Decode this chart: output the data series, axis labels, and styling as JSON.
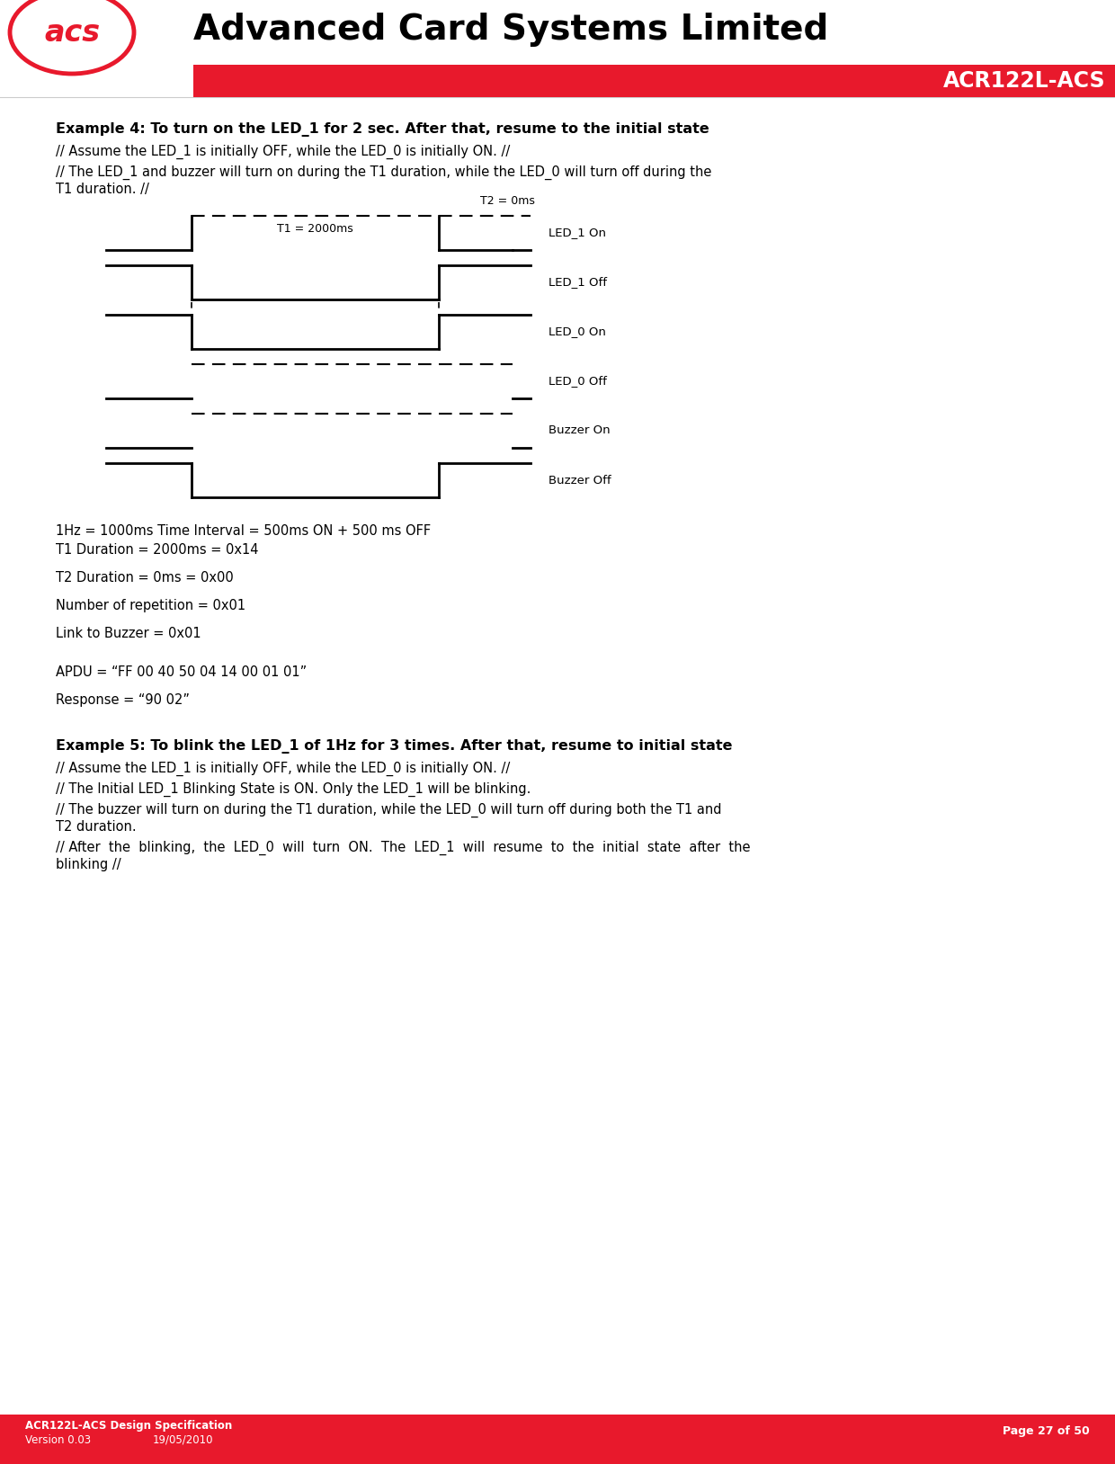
{
  "title": "Advanced Card Systems Limited",
  "subtitle": "ACR122L-ACS",
  "red_color": "#E8192C",
  "footer_left_line1": "ACR122L-ACS Design Specification",
  "footer_left_line2": "Version 0.03",
  "footer_left_line3": "19/05/2010",
  "footer_right": "Page 27 of 50",
  "example4_title": "Example 4: To turn on the LED_1 for 2 sec. After that, resume to the initial state",
  "example4_line1": "// Assume the LED_1 is initially OFF, while the LED_0 is initially ON. //",
  "example4_line2": "// The LED_1 and buzzer will turn on during the T1 duration, while the LED_0 will turn off during the",
  "example4_line2b": "T1 duration. //",
  "example4_param1": "1Hz = 1000ms Time Interval = 500ms ON + 500 ms OFF",
  "example4_param2": "T1 Duration = 2000ms = 0x14",
  "example4_param3": "T2 Duration = 0ms = 0x00",
  "example4_param4": "Number of repetition = 0x01",
  "example4_param5": "Link to Buzzer = 0x01",
  "example4_apdu": "APDU = “FF 00 40 50 04 14 00 01 01”",
  "example4_response": "Response = “90 02”",
  "example5_title": "Example 5: To blink the LED_1 of 1Hz for 3 times. After that, resume to initial state",
  "example5_line1": "// Assume the LED_1 is initially OFF, while the LED_0 is initially ON. //",
  "example5_line2": "// The Initial LED_1 Blinking State is ON. Only the LED_1 will be blinking.",
  "example5_line3": "// The buzzer will turn on during the T1 duration, while the LED_0 will turn off during both the T1 and",
  "example5_line3b": "T2 duration.",
  "example5_line4": "// After  the  blinking,  the  LED_0  will  turn  ON.  The  LED_1  will  resume  to  the  initial  state  after  the",
  "example5_line4b": "blinking //",
  "diagram_labels_right": [
    "LED_1 On",
    "LED_1 Off",
    "LED_0 On",
    "LED_0 Off",
    "Buzzer On",
    "Buzzer Off"
  ],
  "t1_label": "T1 = 2000ms",
  "t2_label": "T2 = 0ms",
  "lw": 2.0,
  "lw_dash": 1.5
}
